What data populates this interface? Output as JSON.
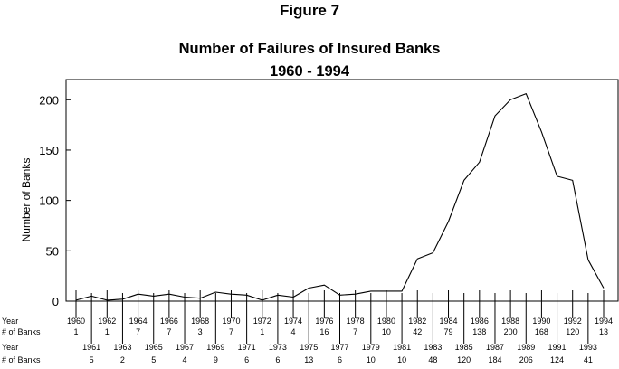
{
  "figure_label": "Figure 7",
  "chart_data": {
    "type": "line",
    "title": "Number of Failures of Insured Banks",
    "subtitle": "1960 - 1994",
    "xlabel": "",
    "ylabel": "Number of Banks",
    "ylim": [
      0,
      220
    ],
    "yticks": [
      0,
      50,
      100,
      150,
      200
    ],
    "grid": false,
    "x": [
      1960,
      1961,
      1962,
      1963,
      1964,
      1965,
      1966,
      1967,
      1968,
      1969,
      1970,
      1971,
      1972,
      1973,
      1974,
      1975,
      1976,
      1977,
      1978,
      1979,
      1980,
      1981,
      1982,
      1983,
      1984,
      1985,
      1986,
      1987,
      1988,
      1989,
      1990,
      1991,
      1992,
      1993,
      1994
    ],
    "series": [
      {
        "values": [
          1,
          5,
          1,
          2,
          7,
          5,
          7,
          4,
          3,
          9,
          7,
          6,
          1,
          6,
          4,
          13,
          16,
          6,
          7,
          10,
          10,
          10,
          42,
          48,
          79,
          120,
          138,
          184,
          200,
          206,
          168,
          124,
          120,
          41,
          13
        ]
      }
    ],
    "table": {
      "year_label": "Year",
      "count_label": "# of Banks"
    }
  }
}
